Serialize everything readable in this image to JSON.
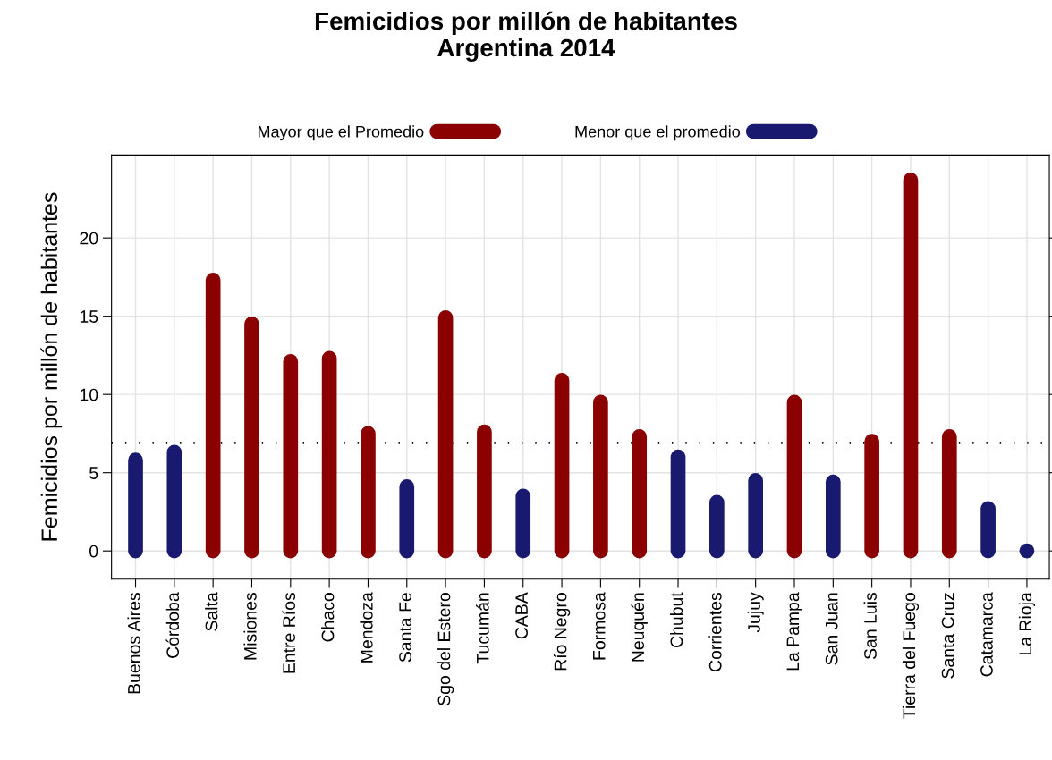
{
  "chart_data": {
    "type": "bar",
    "title": "Femicidios por millón de habitantes\nArgentina 2014",
    "ylabel": "Femicidios por millón de habitantes",
    "categories": [
      "Buenos Aires",
      "Córdoba",
      "Salta",
      "Misiones",
      "Entre Ríos",
      "Chaco",
      "Mendoza",
      "Santa Fe",
      "Sgo del Estero",
      "Tucumán",
      "CABA",
      "Río Negro",
      "Formosa",
      "Neuquén",
      "Chubut",
      "Corrientes",
      "Jujuy",
      "La Pampa",
      "San Juan",
      "San Luis",
      "Tierra del Fuego",
      "Santa Cruz",
      "Catamarca",
      "La Rioja"
    ],
    "series": [
      {
        "name": "Mayor que el Promedio",
        "color": "#8b0000",
        "values": [
          null,
          null,
          17.3,
          14.5,
          12.1,
          12.3,
          7.5,
          null,
          14.9,
          7.6,
          null,
          10.9,
          9.5,
          7.3,
          null,
          null,
          null,
          9.5,
          null,
          7.0,
          23.7,
          7.3,
          null,
          null
        ]
      },
      {
        "name": "Menor que el promedio",
        "color": "#191970",
        "values": [
          5.8,
          6.3,
          null,
          null,
          null,
          null,
          null,
          4.1,
          null,
          null,
          3.5,
          null,
          null,
          null,
          6.0,
          3.1,
          4.5,
          null,
          4.4,
          null,
          null,
          null,
          2.7,
          0
        ]
      }
    ],
    "ylim": [
      -1.8,
      25.3
    ],
    "yticks": [
      0,
      5,
      10,
      15,
      20
    ],
    "ref_lines": [
      {
        "axis": "y",
        "value": 6.9,
        "color": "#000000",
        "line_style": "dotted"
      }
    ],
    "grid": true,
    "legend": "top"
  }
}
